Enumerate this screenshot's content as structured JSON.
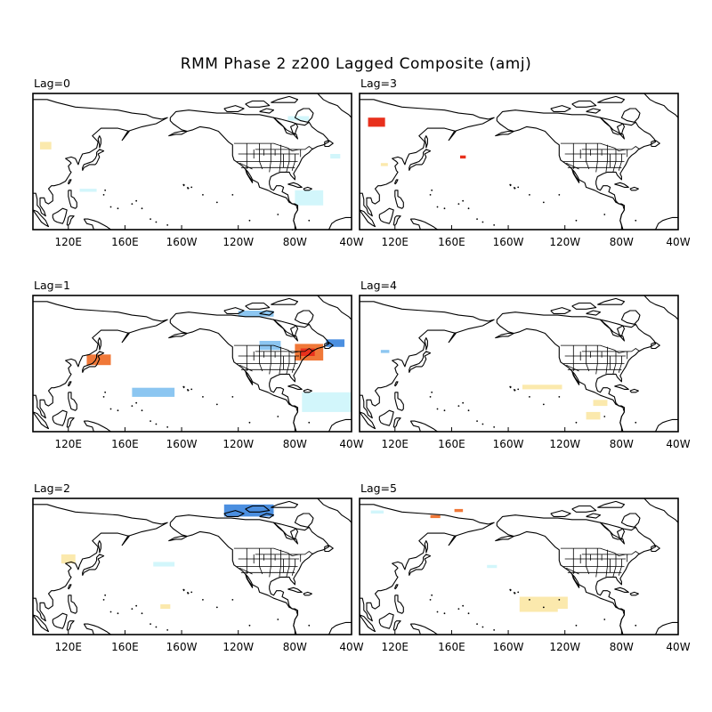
{
  "title": "RMM Phase 2 z200 Lagged Composite (amj)",
  "x_ticks": [
    "120E",
    "160E",
    "160W",
    "120W",
    "80W",
    "40W"
  ],
  "colors": {
    "strong_positive": "#e8301c",
    "positive": "#f07838",
    "weak_positive": "#fbe9ad",
    "weak_negative": "#d2f6fb",
    "negative": "#8cc6f1",
    "strong_negative": "#4b8fe0"
  },
  "panels": [
    {
      "label": "Lag=0",
      "anomalies": [
        {
          "lon": [
            100,
            108
          ],
          "lat": [
            45,
            50
          ],
          "level": "weak_positive"
        },
        {
          "lon": [
            128,
            140
          ],
          "lat": [
            17,
            19
          ],
          "level": "weak_negative"
        },
        {
          "lon": [
            280,
            300
          ],
          "lat": [
            8,
            18
          ],
          "level": "weak_negative"
        },
        {
          "lon": [
            305,
            312
          ],
          "lat": [
            39,
            42
          ],
          "level": "weak_negative"
        },
        {
          "lon": [
            275,
            290
          ],
          "lat": [
            64,
            67
          ],
          "level": "weak_negative"
        }
      ]
    },
    {
      "label": "Lag=3",
      "anomalies": [
        {
          "lon": [
            101,
            113
          ],
          "lat": [
            60,
            66
          ],
          "level": "strong_positive"
        },
        {
          "lon": [
            166,
            170
          ],
          "lat": [
            39,
            41
          ],
          "level": "strong_positive"
        },
        {
          "lon": [
            110,
            115
          ],
          "lat": [
            34,
            36
          ],
          "level": "weak_positive"
        }
      ]
    },
    {
      "label": "Lag=1",
      "anomalies": [
        {
          "lon": [
            133,
            150
          ],
          "lat": [
            36,
            43
          ],
          "level": "positive"
        },
        {
          "lon": [
            280,
            300
          ],
          "lat": [
            39,
            50
          ],
          "level": "positive"
        },
        {
          "lon": [
            284,
            294
          ],
          "lat": [
            42,
            47
          ],
          "level": "strong_positive"
        },
        {
          "lon": [
            165,
            195
          ],
          "lat": [
            15,
            21
          ],
          "level": "negative"
        },
        {
          "lon": [
            240,
            265
          ],
          "lat": [
            68,
            72
          ],
          "level": "negative"
        },
        {
          "lon": [
            255,
            270
          ],
          "lat": [
            46,
            52
          ],
          "level": "negative"
        },
        {
          "lon": [
            302,
            315
          ],
          "lat": [
            48,
            53
          ],
          "level": "strong_negative"
        },
        {
          "lon": [
            285,
            320
          ],
          "lat": [
            5,
            18
          ],
          "level": "weak_negative"
        }
      ]
    },
    {
      "label": "Lag=4",
      "anomalies": [
        {
          "lon": [
            210,
            238
          ],
          "lat": [
            20,
            23
          ],
          "level": "weak_positive"
        },
        {
          "lon": [
            260,
            270
          ],
          "lat": [
            9,
            13
          ],
          "level": "weak_positive"
        },
        {
          "lon": [
            255,
            265
          ],
          "lat": [
            0,
            5
          ],
          "level": "weak_positive"
        },
        {
          "lon": [
            110,
            116
          ],
          "lat": [
            44,
            46
          ],
          "level": "negative"
        }
      ]
    },
    {
      "label": "Lag=2",
      "anomalies": [
        {
          "lon": [
            230,
            265
          ],
          "lat": [
            70,
            78
          ],
          "level": "strong_negative"
        },
        {
          "lon": [
            115,
            125
          ],
          "lat": [
            39,
            45
          ],
          "level": "weak_positive"
        },
        {
          "lon": [
            180,
            195
          ],
          "lat": [
            37,
            40
          ],
          "level": "weak_negative"
        },
        {
          "lon": [
            185,
            192
          ],
          "lat": [
            9,
            12
          ],
          "level": "weak_positive"
        }
      ]
    },
    {
      "label": "Lag=5",
      "anomalies": [
        {
          "lon": [
            145,
            152
          ],
          "lat": [
            69,
            71
          ],
          "level": "positive"
        },
        {
          "lon": [
            162,
            168
          ],
          "lat": [
            73,
            75
          ],
          "level": "positive"
        },
        {
          "lon": [
            208,
            235
          ],
          "lat": [
            7,
            17
          ],
          "level": "weak_positive"
        },
        {
          "lon": [
            227,
            242
          ],
          "lat": [
            9,
            17
          ],
          "level": "weak_positive"
        },
        {
          "lon": [
            103,
            112
          ],
          "lat": [
            72,
            74
          ],
          "level": "weak_negative"
        },
        {
          "lon": [
            185,
            192
          ],
          "lat": [
            36,
            38
          ],
          "level": "weak_negative"
        }
      ]
    }
  ]
}
